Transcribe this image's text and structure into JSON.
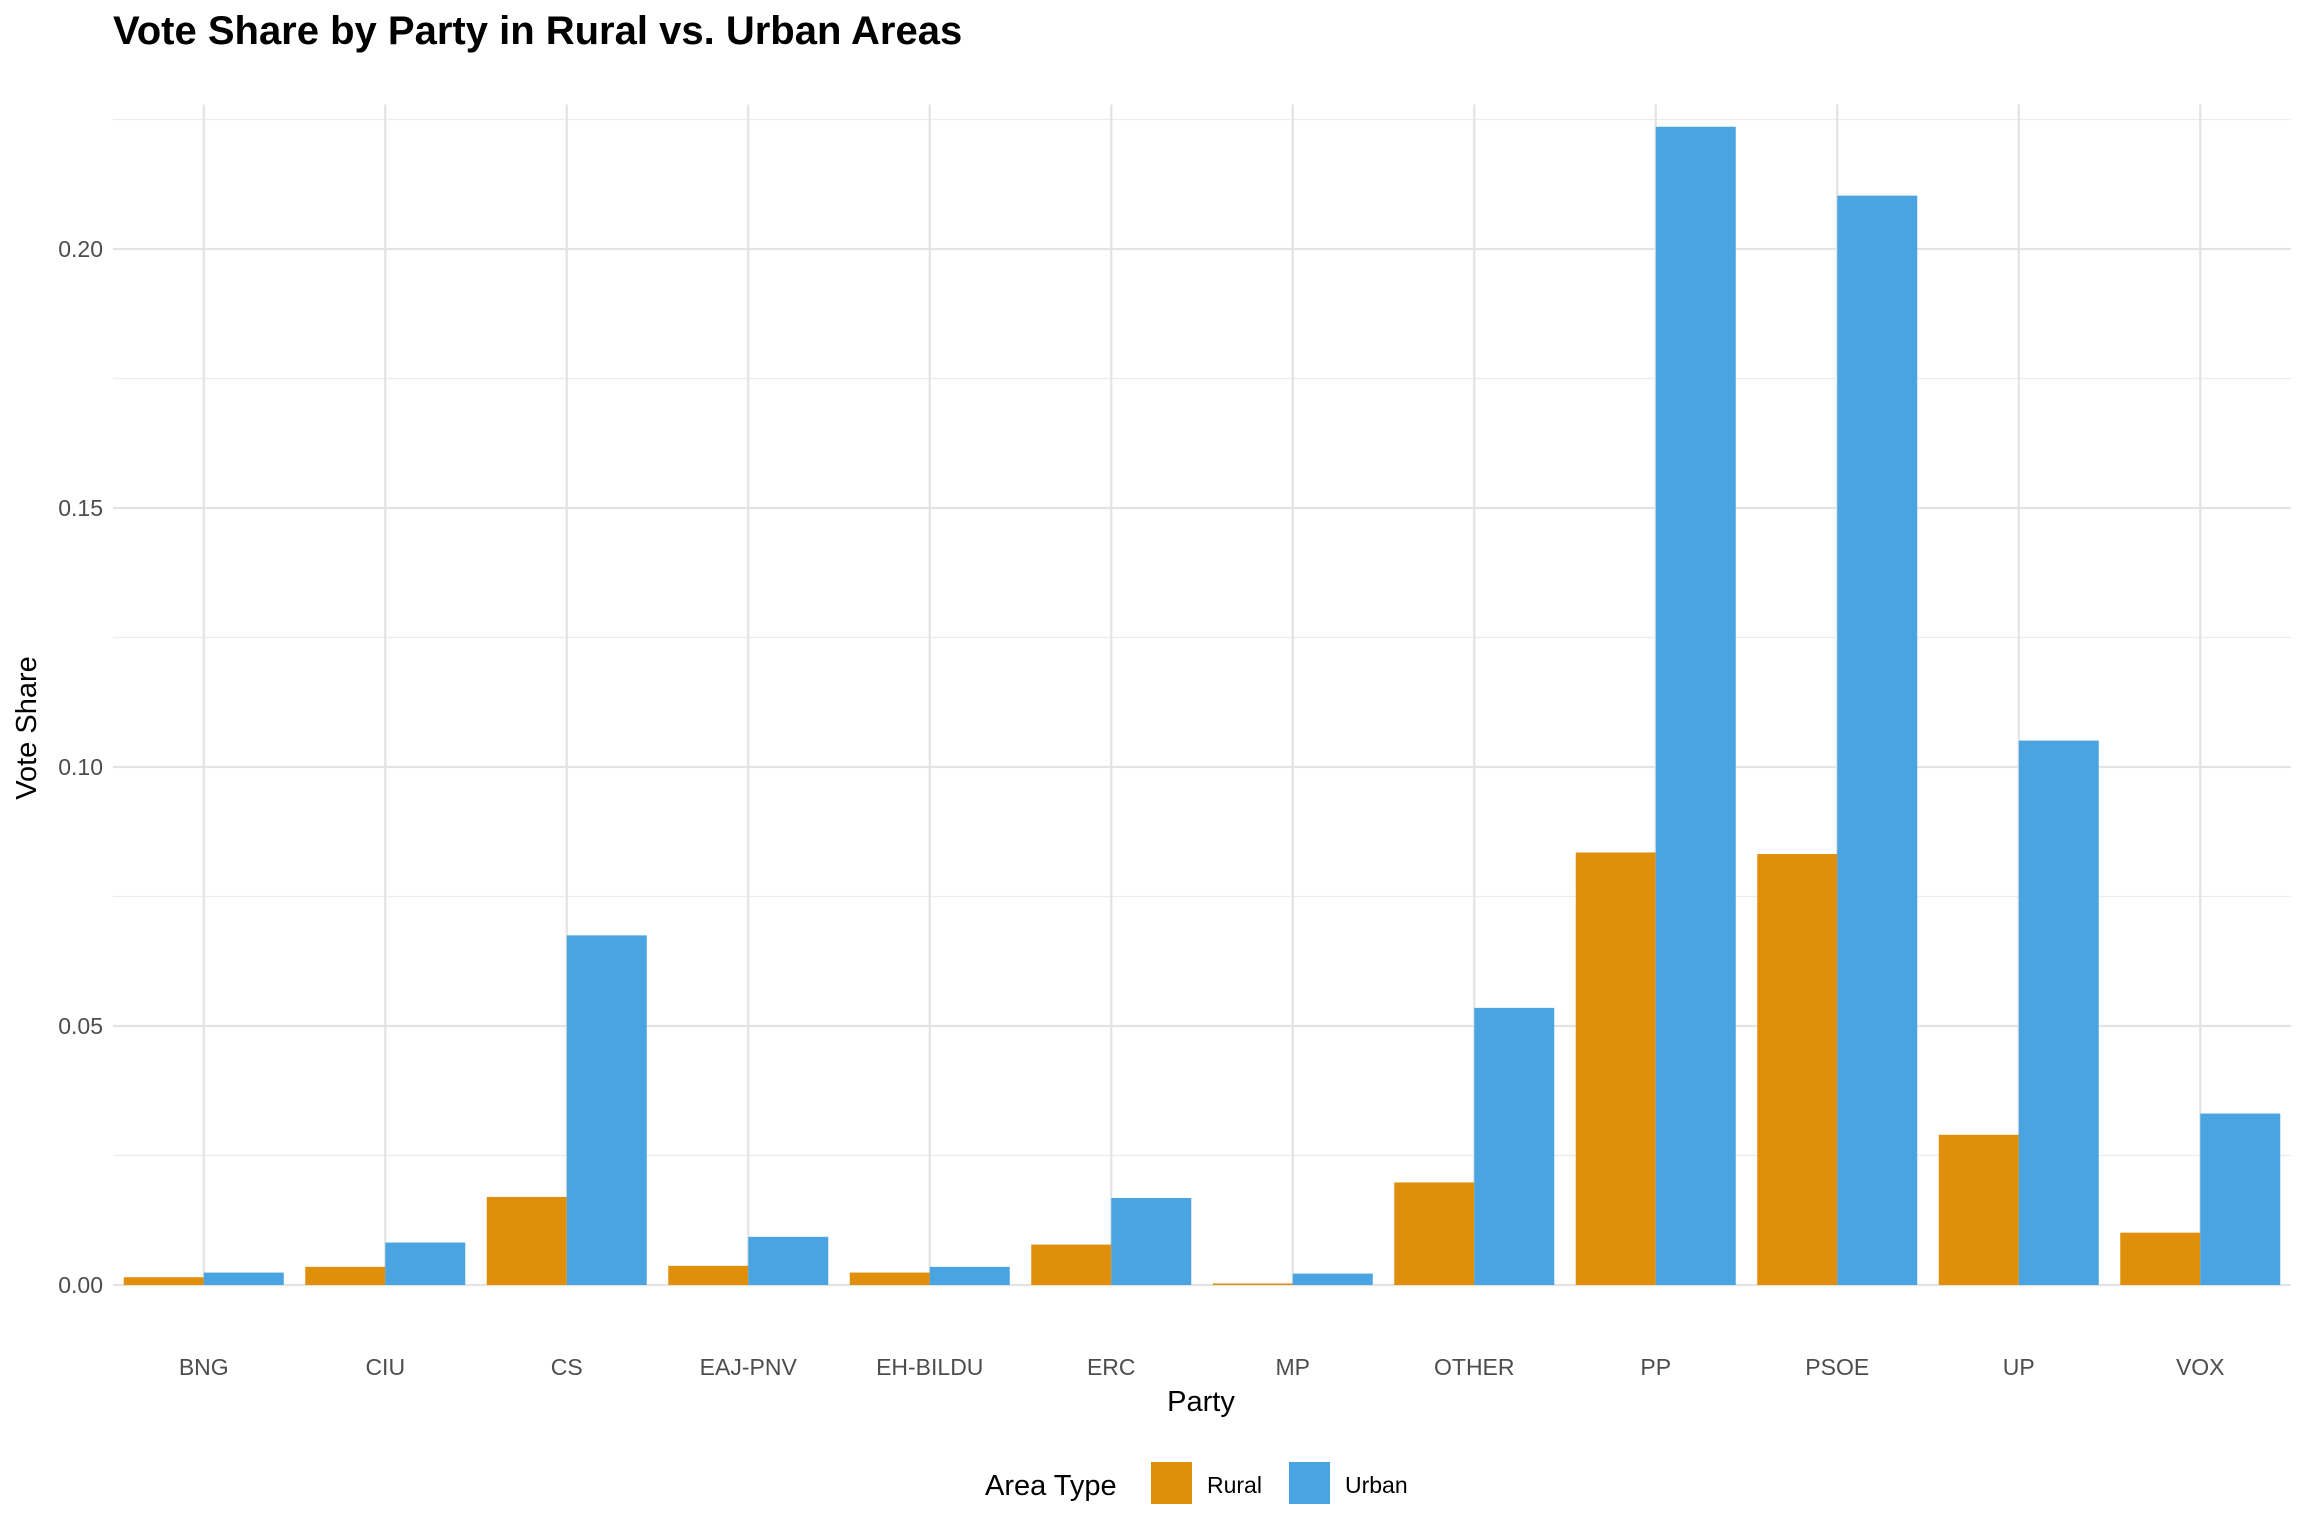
{
  "chart_data": {
    "type": "bar",
    "title": "Vote Share by Party in Rural vs. Urban Areas",
    "xlabel": "Party",
    "ylabel": "Vote Share",
    "categories": [
      "BNG",
      "CIU",
      "CS",
      "EAJ-PNV",
      "EH-BILDU",
      "ERC",
      "MP",
      "OTHER",
      "PP",
      "PSOE",
      "UP",
      "VOX"
    ],
    "series": [
      {
        "name": "Rural",
        "color": "#E08F0B",
        "values": [
          0.0015,
          0.0035,
          0.017,
          0.0037,
          0.0024,
          0.0078,
          0.0003,
          0.0198,
          0.0835,
          0.0832,
          0.029,
          0.0101
        ]
      },
      {
        "name": "Urban",
        "color": "#4AA4E2",
        "values": [
          0.0024,
          0.0082,
          0.0675,
          0.0093,
          0.0035,
          0.0168,
          0.0022,
          0.0535,
          0.2236,
          0.2103,
          0.1051,
          0.0331
        ]
      }
    ],
    "ylim": [
      0,
      0.225
    ],
    "yticks": [
      "0.00",
      "0.05",
      "0.10",
      "0.15",
      "0.20"
    ],
    "grid": true,
    "legend": {
      "title": "Area Type",
      "position": "bottom"
    }
  }
}
